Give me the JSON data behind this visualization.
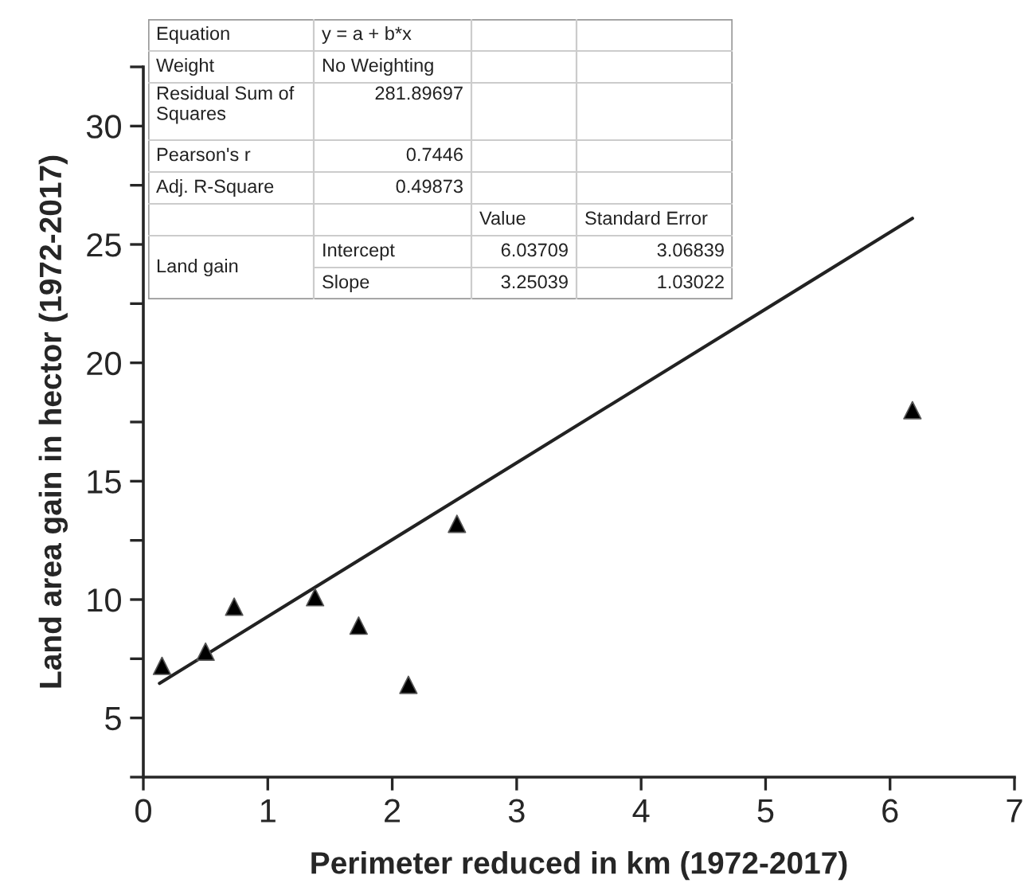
{
  "chart_data": {
    "type": "scatter",
    "xlabel": "Perimeter reduced in km (1972-2017)",
    "ylabel": "Land area gain in hector (1972-2017)",
    "xlim": [
      0,
      7
    ],
    "xticks": [
      0,
      1,
      2,
      3,
      4,
      5,
      6,
      7
    ],
    "ylim": [
      2.5,
      32.5
    ],
    "yticks": [
      {
        "value": 2.5,
        "label": null
      },
      5,
      {
        "value": 7.5,
        "label": null
      },
      10,
      {
        "value": 12.5,
        "label": null
      },
      15,
      {
        "value": 17.5,
        "label": null
      },
      20,
      {
        "value": 22.5,
        "label": null
      },
      25,
      {
        "value": 27.5,
        "label": null
      },
      30,
      {
        "value": 32.5,
        "label": null
      }
    ],
    "grid": false,
    "legend": false,
    "series": [
      {
        "color": "#000000",
        "marker": "triangle",
        "x": [
          0.15,
          0.5,
          0.73,
          1.38,
          1.73,
          2.13,
          2.52,
          6.18
        ],
        "values": [
          7.2,
          7.8,
          9.7,
          10.1,
          8.9,
          6.4,
          13.2,
          18.0
        ]
      },
      {
        "type": "line",
        "color": "#222222",
        "line_style": "solid",
        "marker": "none",
        "x": [
          0.13,
          6.18
        ],
        "values": [
          6.46,
          26.1
        ]
      }
    ],
    "annotations": [
      "Equation",
      "y = a + b*x",
      "Weight",
      "No Weighting",
      "Residual Sum of\nSquares",
      "281.89697",
      "Pearson's r",
      "0.7446",
      "Adj. R-Square",
      "0.49873",
      "Value",
      "Standard Error",
      "Land gain",
      "Intercept",
      "6.03709",
      "3.06839",
      "Slope",
      "3.25039",
      "1.03022"
    ]
  }
}
